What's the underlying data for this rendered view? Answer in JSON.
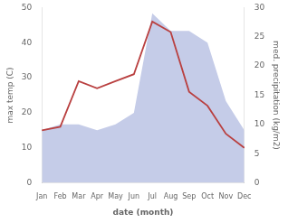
{
  "chart_data": {
    "type": "line",
    "xlabel": "date (month)",
    "ylabel": "max temp (C)",
    "y2label": "med. precipitation (kg/m2)",
    "categories": [
      "Jan",
      "Feb",
      "Mar",
      "Apr",
      "May",
      "Jun",
      "Jul",
      "Aug",
      "Sep",
      "Oct",
      "Nov",
      "Dec"
    ],
    "series": [
      {
        "type": "area",
        "axis": "y2",
        "color": "#c5cce8",
        "values": [
          9,
          10,
          10,
          9,
          10,
          12,
          29,
          26,
          26,
          24,
          14,
          9
        ]
      },
      {
        "type": "line",
        "color": "#b94040",
        "values": [
          15,
          16,
          29,
          27,
          29,
          31,
          46,
          43,
          26,
          22,
          14,
          10
        ]
      }
    ],
    "ylim": [
      0,
      50
    ],
    "yticks": [
      0,
      10,
      20,
      30,
      40,
      50
    ],
    "y2lim": [
      0,
      30
    ],
    "y2ticks": [
      0,
      5,
      10,
      15,
      20,
      25,
      30
    ],
    "grid": false
  }
}
